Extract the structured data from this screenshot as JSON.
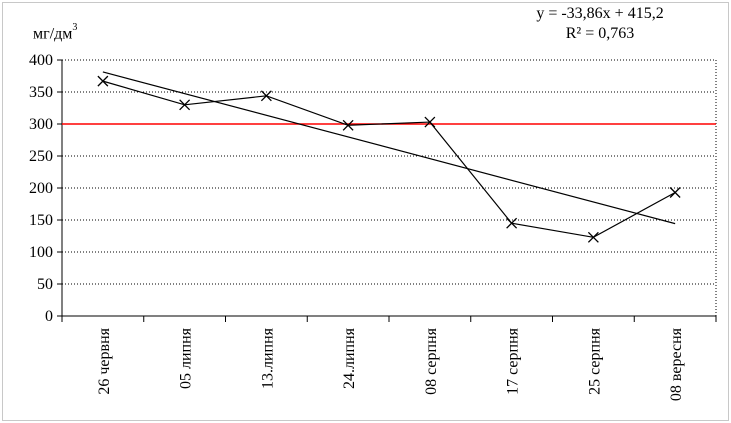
{
  "chart_data": {
    "type": "line",
    "unit_label": "мг/дм",
    "unit_superscript": "3",
    "categories": [
      "26 червня",
      "05 липня",
      "13.липня",
      "24.липня",
      "08 серпня",
      "17 серпня",
      "25 серпня",
      "08 вересня"
    ],
    "series": [
      {
        "values": [
          367,
          330,
          344,
          298,
          303,
          145,
          123,
          193
        ],
        "color": "#000000",
        "marker": "x"
      }
    ],
    "reference_line": {
      "value": 300,
      "color": "#ff0000"
    },
    "trendline": {
      "slope": -33.86,
      "intercept": 415.2,
      "color": "#000000"
    },
    "equation": "y = -33,86x + 415,2",
    "r_squared": "R² = 0,763",
    "yticks": [
      "0",
      "50",
      "100",
      "150",
      "200",
      "250",
      "300",
      "350",
      "400"
    ],
    "ylim": [
      0,
      400
    ],
    "grid": true
  }
}
